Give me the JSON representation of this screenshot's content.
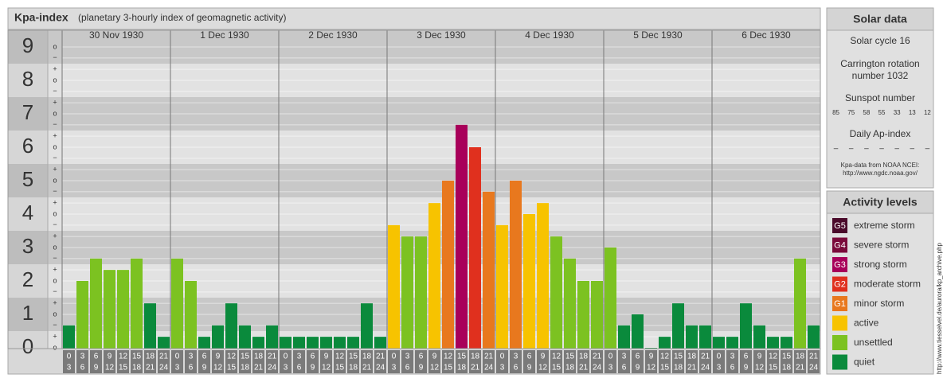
{
  "chart_data": {
    "type": "bar",
    "title": "Kpa-index",
    "subtitle": "(planetary 3-hourly index of geomagnetic activity)",
    "ylim": [
      0,
      9.5
    ],
    "yticks": [
      0,
      1,
      2,
      3,
      4,
      5,
      6,
      7,
      8,
      9
    ],
    "yminor_ticks": [
      {
        "value": 0,
        "label": "o"
      },
      {
        "value": 0.33,
        "label": "+"
      },
      {
        "value": 0.67,
        "label": "−"
      },
      {
        "value": 1,
        "label": "o"
      },
      {
        "value": 1.33,
        "label": "+"
      },
      {
        "value": 1.67,
        "label": "−"
      },
      {
        "value": 2,
        "label": "o"
      },
      {
        "value": 2.33,
        "label": "+"
      },
      {
        "value": 2.67,
        "label": "−"
      },
      {
        "value": 3,
        "label": "o"
      },
      {
        "value": 3.33,
        "label": "+"
      },
      {
        "value": 3.67,
        "label": "−"
      },
      {
        "value": 4,
        "label": "o"
      },
      {
        "value": 4.33,
        "label": "+"
      },
      {
        "value": 4.67,
        "label": "−"
      },
      {
        "value": 5,
        "label": "o"
      },
      {
        "value": 5.33,
        "label": "+"
      },
      {
        "value": 5.67,
        "label": "−"
      },
      {
        "value": 6,
        "label": "o"
      },
      {
        "value": 6.33,
        "label": "+"
      },
      {
        "value": 6.67,
        "label": "−"
      },
      {
        "value": 7,
        "label": "o"
      },
      {
        "value": 7.33,
        "label": "+"
      },
      {
        "value": 7.67,
        "label": "−"
      },
      {
        "value": 8,
        "label": "o"
      },
      {
        "value": 8.33,
        "label": "+"
      },
      {
        "value": 8.67,
        "label": "−"
      },
      {
        "value": 9,
        "label": "o"
      }
    ],
    "grid": true,
    "hour_ranges": [
      [
        0,
        3
      ],
      [
        3,
        6
      ],
      [
        6,
        9
      ],
      [
        9,
        12
      ],
      [
        12,
        15
      ],
      [
        15,
        18
      ],
      [
        18,
        21
      ],
      [
        21,
        24
      ]
    ],
    "days": [
      {
        "date": "30 Nov 1930",
        "values": [
          0.67,
          2,
          2.67,
          2.33,
          2.33,
          2.67,
          1.33,
          0.33
        ],
        "colors": [
          "#0a8a3c",
          "#7cc221",
          "#7cc221",
          "#7cc221",
          "#7cc221",
          "#7cc221",
          "#0a8a3c",
          "#0a8a3c"
        ]
      },
      {
        "date": "1 Dec 1930",
        "values": [
          2.67,
          2,
          0.33,
          0.67,
          1.33,
          0.67,
          0.33,
          0.67
        ],
        "colors": [
          "#7cc221",
          "#7cc221",
          "#0a8a3c",
          "#0a8a3c",
          "#0a8a3c",
          "#0a8a3c",
          "#0a8a3c",
          "#0a8a3c"
        ]
      },
      {
        "date": "2 Dec 1930",
        "values": [
          0.33,
          0.33,
          0.33,
          0.33,
          0.33,
          0.33,
          1.33,
          0.33
        ],
        "colors": [
          "#0a8a3c",
          "#0a8a3c",
          "#0a8a3c",
          "#0a8a3c",
          "#0a8a3c",
          "#0a8a3c",
          "#0a8a3c",
          "#0a8a3c"
        ]
      },
      {
        "date": "3 Dec 1930",
        "values": [
          3.67,
          3.33,
          3.33,
          4.33,
          5,
          6.67,
          6,
          4.67
        ],
        "colors": [
          "#f7c300",
          "#7cc221",
          "#7cc221",
          "#f7c300",
          "#e8781e",
          "#a8005a",
          "#e0301e",
          "#e8781e"
        ]
      },
      {
        "date": "4 Dec 1930",
        "values": [
          3.67,
          5,
          4,
          4.33,
          3.33,
          2.67,
          2,
          2
        ],
        "colors": [
          "#f7c300",
          "#e8781e",
          "#f7c300",
          "#f7c300",
          "#7cc221",
          "#7cc221",
          "#7cc221",
          "#7cc221"
        ]
      },
      {
        "date": "5 Dec 1930",
        "values": [
          3,
          0.67,
          1,
          0,
          0.33,
          1.33,
          0.67,
          0.67
        ],
        "colors": [
          "#7cc221",
          "#0a8a3c",
          "#0a8a3c",
          "#0a8a3c",
          "#0a8a3c",
          "#0a8a3c",
          "#0a8a3c",
          "#0a8a3c"
        ]
      },
      {
        "date": "6 Dec 1930",
        "values": [
          0.33,
          0.33,
          1.33,
          0.67,
          0.33,
          0.33,
          2.67,
          0.67
        ],
        "colors": [
          "#0a8a3c",
          "#0a8a3c",
          "#0a8a3c",
          "#0a8a3c",
          "#0a8a3c",
          "#0a8a3c",
          "#7cc221",
          "#0a8a3c"
        ]
      }
    ]
  },
  "solar_data": {
    "title": "Solar data",
    "solar_cycle": "Solar cycle 16",
    "carrington": [
      "Carrington rotation",
      "number 1032"
    ],
    "sunspot_title": "Sunspot number",
    "sunspot_numbers": [
      85,
      75,
      58,
      55,
      33,
      13,
      12
    ],
    "ap_title": "Daily Ap-index",
    "ap_values": [
      "–",
      "–",
      "–",
      "–",
      "–",
      "–",
      "–"
    ],
    "source": [
      "Kpa-data from NOAA NCEI:",
      "http://www.ngdc.noaa.gov/"
    ]
  },
  "activity_levels": {
    "title": "Activity levels",
    "items": [
      {
        "badge": "G5",
        "label": "extreme storm",
        "color": "#4a0a2a"
      },
      {
        "badge": "G4",
        "label": "severe storm",
        "color": "#7a0a3a"
      },
      {
        "badge": "G3",
        "label": "strong storm",
        "color": "#a8005a"
      },
      {
        "badge": "G2",
        "label": "moderate storm",
        "color": "#e0301e"
      },
      {
        "badge": "G1",
        "label": "minor storm",
        "color": "#e8781e"
      },
      {
        "badge": "",
        "label": "active",
        "color": "#f7c300"
      },
      {
        "badge": "",
        "label": "unsettled",
        "color": "#7cc221"
      },
      {
        "badge": "",
        "label": "quiet",
        "color": "#0a8a3c"
      }
    ]
  },
  "side_url": "http://www.tiesselvel.de/aurora/kp_archive.php"
}
